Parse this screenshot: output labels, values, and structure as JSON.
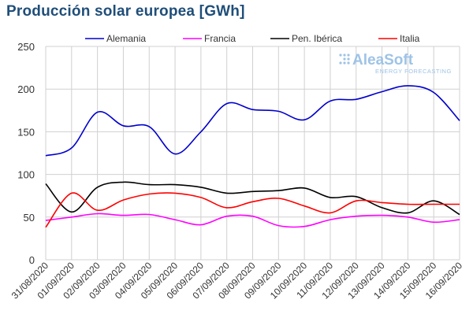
{
  "title": "Producción solar europea [GWh]",
  "brand": {
    "name": "AleaSoft",
    "tagline": "ENERGY FORECASTING",
    "color": "#9ec3e6"
  },
  "chart_data": {
    "type": "line",
    "title": "Producción solar europea [GWh]",
    "xlabel": "",
    "ylabel": "",
    "ylim": [
      0,
      250
    ],
    "yticks": [
      0,
      50,
      100,
      150,
      200,
      250
    ],
    "grid": true,
    "legend_position": "top",
    "categories": [
      "31/08/2020",
      "01/09/2020",
      "02/09/2020",
      "03/09/2020",
      "04/09/2020",
      "05/09/2020",
      "06/09/2020",
      "07/09/2020",
      "08/09/2020",
      "09/09/2020",
      "10/09/2020",
      "11/09/2020",
      "12/09/2020",
      "13/09/2020",
      "14/09/2020",
      "15/09/2020",
      "16/09/2020"
    ],
    "series": [
      {
        "name": "Alemania",
        "color": "#0000cc",
        "values": [
          122,
          131,
          173,
          157,
          156,
          124,
          150,
          183,
          176,
          174,
          164,
          186,
          188,
          197,
          204,
          196,
          163
        ]
      },
      {
        "name": "Francia",
        "color": "#ff00ff",
        "values": [
          46,
          50,
          54,
          52,
          53,
          47,
          41,
          51,
          51,
          40,
          39,
          47,
          51,
          52,
          50,
          44,
          47
        ]
      },
      {
        "name": "Pen. Ibérica",
        "color": "#000000",
        "values": [
          89,
          56,
          85,
          91,
          88,
          88,
          85,
          78,
          80,
          81,
          84,
          73,
          74,
          61,
          55,
          69,
          53
        ]
      },
      {
        "name": "Italia",
        "color": "#ff0000",
        "values": [
          38,
          78,
          58,
          70,
          77,
          78,
          73,
          61,
          68,
          72,
          63,
          55,
          69,
          67,
          65,
          65,
          65
        ]
      }
    ]
  }
}
